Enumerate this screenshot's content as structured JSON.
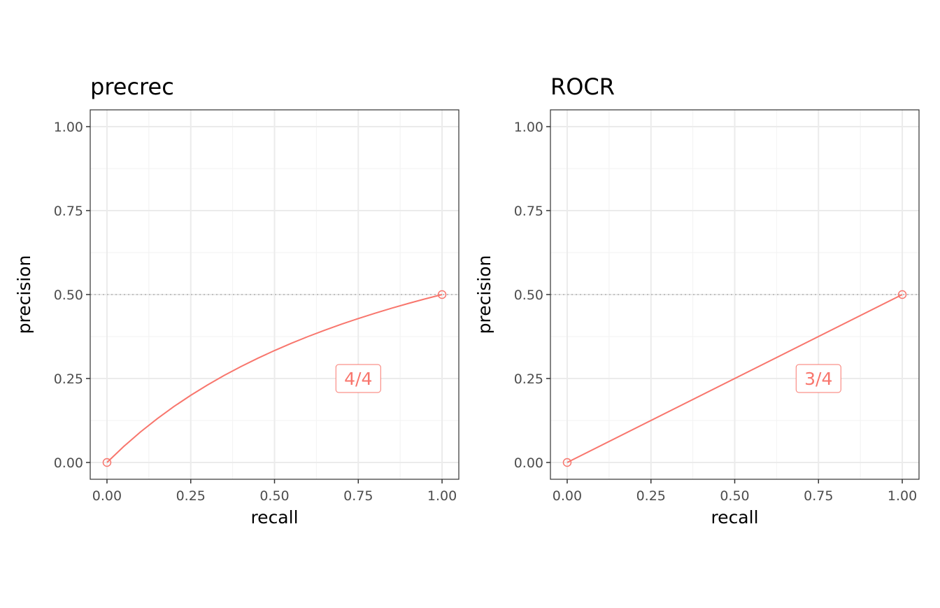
{
  "chart_data": [
    {
      "type": "line",
      "title": "precrec",
      "xlabel": "recall",
      "ylabel": "precision",
      "xlim": [
        -0.05,
        1.05
      ],
      "ylim": [
        -0.05,
        1.05
      ],
      "x_ticks": [
        "0.00",
        "0.25",
        "0.50",
        "0.75",
        "1.00"
      ],
      "y_ticks": [
        "0.00",
        "0.25",
        "0.50",
        "0.75",
        "1.00"
      ],
      "x_tick_values": [
        0,
        0.25,
        0.5,
        0.75,
        1
      ],
      "y_tick_values": [
        0,
        0.25,
        0.5,
        0.75,
        1
      ],
      "grid": true,
      "reference_line": {
        "y": 0.5,
        "style": "dotted"
      },
      "series": [
        {
          "color": "#f8766d",
          "x": [
            0,
            0.05,
            0.1,
            0.15,
            0.2,
            0.25,
            0.3,
            0.35,
            0.4,
            0.45,
            0.5,
            0.55,
            0.6,
            0.65,
            0.7,
            0.75,
            0.8,
            0.85,
            0.9,
            0.95,
            1
          ],
          "y": [
            0,
            0.0476,
            0.0909,
            0.1304,
            0.1667,
            0.2,
            0.2308,
            0.2593,
            0.2857,
            0.3103,
            0.3333,
            0.3548,
            0.375,
            0.3939,
            0.4118,
            0.4286,
            0.4444,
            0.4595,
            0.4737,
            0.4872,
            0.5
          ],
          "points": [
            {
              "x": 0,
              "y": 0
            },
            {
              "x": 1,
              "y": 0.5
            }
          ]
        }
      ],
      "annotation": {
        "text": "4/4",
        "x": 0.75,
        "y": 0.25
      }
    },
    {
      "type": "line",
      "title": "ROCR",
      "xlabel": "recall",
      "ylabel": "precision",
      "xlim": [
        -0.05,
        1.05
      ],
      "ylim": [
        -0.05,
        1.05
      ],
      "x_ticks": [
        "0.00",
        "0.25",
        "0.50",
        "0.75",
        "1.00"
      ],
      "y_ticks": [
        "0.00",
        "0.25",
        "0.50",
        "0.75",
        "1.00"
      ],
      "x_tick_values": [
        0,
        0.25,
        0.5,
        0.75,
        1
      ],
      "y_tick_values": [
        0,
        0.25,
        0.5,
        0.75,
        1
      ],
      "grid": true,
      "reference_line": {
        "y": 0.5,
        "style": "dotted"
      },
      "series": [
        {
          "color": "#f8766d",
          "x": [
            0,
            1
          ],
          "y": [
            0,
            0.5
          ],
          "points": [
            {
              "x": 0,
              "y": 0
            },
            {
              "x": 1,
              "y": 0.5
            }
          ]
        }
      ],
      "annotation": {
        "text": "3/4",
        "x": 0.75,
        "y": 0.25
      }
    }
  ]
}
